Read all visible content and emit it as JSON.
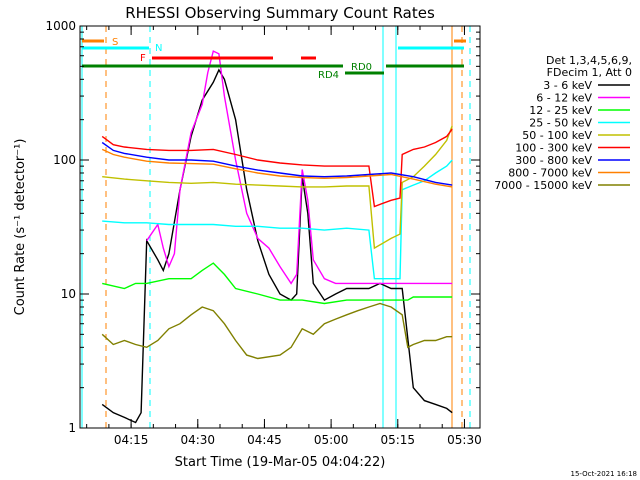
{
  "chart_data": {
    "type": "line",
    "title": "RHESSI Observing Summary Count Rates",
    "xlabel": "Start Time (19-Mar-05 04:04:22)",
    "ylabel": "Count Rate (s⁻¹ detector⁻¹)",
    "y_scale": "log",
    "ylim": [
      1,
      1000
    ],
    "xlim_minutes": [
      0,
      36
    ],
    "x_ticks": [
      {
        "label": "04:15",
        "minute": 4.6
      },
      {
        "label": "04:30",
        "minute": 10.6
      },
      {
        "label": "04:45",
        "minute": 16.6
      },
      {
        "label": "05:00",
        "minute": 22.6
      },
      {
        "label": "05:15",
        "minute": 28.6
      },
      {
        "label": "05:30",
        "minute": 34.6
      }
    ],
    "y_ticks": [
      {
        "label": "1",
        "value": 1
      },
      {
        "label": "10",
        "value": 10
      },
      {
        "label": "100",
        "value": 100
      },
      {
        "label": "1000",
        "value": 1000
      }
    ],
    "legend_header": [
      "Det 1,3,4,5,6,9,",
      "FDecim 1, Att 0"
    ],
    "legend_placement": "right",
    "footer_timestamp": "15-Oct-2021 16:18",
    "flags": {
      "S": {
        "label": "S",
        "color": "#ff8000"
      },
      "N": {
        "label": "N",
        "color": "#00ffff"
      },
      "F": {
        "label": "F",
        "color": "#ff0000"
      },
      "RD0": {
        "label": "RD0",
        "color": "#008000"
      },
      "RD4": {
        "label": "RD4",
        "color": "#008000"
      }
    },
    "series": [
      {
        "name": "3 - 6 keV",
        "color": "#000000",
        "points": [
          [
            2.0,
            1.5
          ],
          [
            3.0,
            1.3
          ],
          [
            4.0,
            1.2
          ],
          [
            5.0,
            1.1
          ],
          [
            5.5,
            1.3
          ],
          [
            6.0,
            25
          ],
          [
            7.0,
            18
          ],
          [
            7.5,
            15
          ],
          [
            8.0,
            20
          ],
          [
            9.0,
            60
          ],
          [
            10.0,
            150
          ],
          [
            11.0,
            280
          ],
          [
            12.0,
            380
          ],
          [
            12.5,
            470
          ],
          [
            13.0,
            400
          ],
          [
            14.0,
            200
          ],
          [
            15.0,
            60
          ],
          [
            16.0,
            25
          ],
          [
            17.0,
            14
          ],
          [
            18.0,
            10
          ],
          [
            19.0,
            9
          ],
          [
            19.5,
            10
          ],
          [
            20.0,
            75
          ],
          [
            20.5,
            40
          ],
          [
            21.0,
            12
          ],
          [
            22.0,
            9
          ],
          [
            23.0,
            10
          ],
          [
            24.0,
            11
          ],
          [
            25.0,
            11
          ],
          [
            26.0,
            11
          ],
          [
            27.0,
            12
          ],
          [
            28.0,
            11
          ],
          [
            29.0,
            11
          ],
          [
            30.0,
            2.0
          ],
          [
            31.0,
            1.6
          ],
          [
            32.0,
            1.5
          ],
          [
            33.0,
            1.4
          ],
          [
            33.5,
            1.3
          ]
        ]
      },
      {
        "name": "6 - 12 keV",
        "color": "#ff00ff",
        "points": [
          [
            6.0,
            25
          ],
          [
            7.0,
            33
          ],
          [
            7.5,
            22
          ],
          [
            8.0,
            16
          ],
          [
            8.5,
            20
          ],
          [
            9.0,
            60
          ],
          [
            10.0,
            160
          ],
          [
            11.0,
            260
          ],
          [
            11.5,
            450
          ],
          [
            12.0,
            650
          ],
          [
            12.5,
            620
          ],
          [
            13.0,
            300
          ],
          [
            14.0,
            100
          ],
          [
            15.0,
            40
          ],
          [
            16.0,
            26
          ],
          [
            17.0,
            22
          ],
          [
            18.0,
            16
          ],
          [
            19.0,
            12
          ],
          [
            19.5,
            14
          ],
          [
            20.0,
            85
          ],
          [
            20.5,
            50
          ],
          [
            21.0,
            18
          ],
          [
            22.0,
            13
          ],
          [
            23.0,
            12
          ],
          [
            24.0,
            12
          ],
          [
            25.0,
            12
          ],
          [
            26.0,
            12
          ],
          [
            27.0,
            12
          ],
          [
            28.0,
            12
          ],
          [
            29.0,
            12
          ],
          [
            30.0,
            12
          ],
          [
            31.0,
            12
          ],
          [
            32.0,
            12
          ],
          [
            33.0,
            12
          ],
          [
            33.5,
            12
          ]
        ]
      },
      {
        "name": "12 - 25 keV",
        "color": "#00ff00",
        "points": [
          [
            2.0,
            12
          ],
          [
            4.0,
            11
          ],
          [
            5.0,
            12
          ],
          [
            6.0,
            12
          ],
          [
            8.0,
            13
          ],
          [
            10.0,
            13
          ],
          [
            11.0,
            15
          ],
          [
            12.0,
            17
          ],
          [
            13.0,
            14
          ],
          [
            14.0,
            11
          ],
          [
            16.0,
            10
          ],
          [
            18.0,
            9
          ],
          [
            20.0,
            9
          ],
          [
            22.0,
            8.5
          ],
          [
            24.0,
            9
          ],
          [
            26.0,
            9
          ],
          [
            28.0,
            9
          ],
          [
            29.5,
            9
          ],
          [
            30.0,
            9.5
          ],
          [
            32.0,
            9.5
          ],
          [
            33.5,
            9.5
          ]
        ]
      },
      {
        "name": "25 - 50 keV",
        "color": "#00ffff",
        "points": [
          [
            2.0,
            35
          ],
          [
            4.0,
            34
          ],
          [
            6.0,
            34
          ],
          [
            8.0,
            33
          ],
          [
            10.0,
            33
          ],
          [
            12.0,
            33
          ],
          [
            14.0,
            32
          ],
          [
            16.0,
            32
          ],
          [
            18.0,
            31
          ],
          [
            20.0,
            31
          ],
          [
            22.0,
            30
          ],
          [
            24.0,
            31
          ],
          [
            26.0,
            30
          ],
          [
            26.5,
            13
          ],
          [
            28.0,
            13
          ],
          [
            28.8,
            13
          ],
          [
            29.0,
            60
          ],
          [
            30.0,
            65
          ],
          [
            31.0,
            70
          ],
          [
            32.0,
            80
          ],
          [
            33.0,
            90
          ],
          [
            33.5,
            100
          ]
        ]
      },
      {
        "name": "50 - 100 keV",
        "color": "#c0c000",
        "points": [
          [
            2.0,
            75
          ],
          [
            4.0,
            72
          ],
          [
            6.0,
            70
          ],
          [
            8.0,
            68
          ],
          [
            10.0,
            67
          ],
          [
            12.0,
            68
          ],
          [
            14.0,
            66
          ],
          [
            16.0,
            65
          ],
          [
            18.0,
            64
          ],
          [
            20.0,
            63
          ],
          [
            22.0,
            63
          ],
          [
            24.0,
            64
          ],
          [
            26.0,
            64
          ],
          [
            26.5,
            22
          ],
          [
            28.0,
            26
          ],
          [
            28.8,
            28
          ],
          [
            29.0,
            68
          ],
          [
            30.0,
            75
          ],
          [
            31.0,
            90
          ],
          [
            32.0,
            110
          ],
          [
            33.0,
            140
          ],
          [
            33.5,
            180
          ]
        ]
      },
      {
        "name": "100 - 300 keV",
        "color": "#ff0000",
        "points": [
          [
            2.0,
            150
          ],
          [
            3.0,
            130
          ],
          [
            4.0,
            125
          ],
          [
            6.0,
            120
          ],
          [
            8.0,
            118
          ],
          [
            10.0,
            118
          ],
          [
            12.0,
            120
          ],
          [
            14.0,
            110
          ],
          [
            16.0,
            100
          ],
          [
            18.0,
            95
          ],
          [
            20.0,
            92
          ],
          [
            22.0,
            90
          ],
          [
            24.0,
            90
          ],
          [
            26.0,
            90
          ],
          [
            26.5,
            45
          ],
          [
            28.0,
            50
          ],
          [
            28.8,
            52
          ],
          [
            29.0,
            110
          ],
          [
            30.0,
            120
          ],
          [
            31.0,
            125
          ],
          [
            32.0,
            135
          ],
          [
            33.0,
            150
          ],
          [
            33.5,
            170
          ]
        ]
      },
      {
        "name": "300 - 800 keV",
        "color": "#0000ff",
        "points": [
          [
            2.0,
            135
          ],
          [
            3.0,
            118
          ],
          [
            4.0,
            112
          ],
          [
            6.0,
            105
          ],
          [
            8.0,
            100
          ],
          [
            10.0,
            100
          ],
          [
            12.0,
            98
          ],
          [
            14.0,
            90
          ],
          [
            16.0,
            84
          ],
          [
            18.0,
            80
          ],
          [
            20.0,
            76
          ],
          [
            22.0,
            75
          ],
          [
            24.0,
            76
          ],
          [
            26.0,
            78
          ],
          [
            28.0,
            80
          ],
          [
            30.0,
            75
          ],
          [
            32.0,
            68
          ],
          [
            33.5,
            65
          ]
        ]
      },
      {
        "name": "800 - 7000 keV",
        "color": "#ff8000",
        "points": [
          [
            2.0,
            120
          ],
          [
            3.0,
            110
          ],
          [
            4.0,
            105
          ],
          [
            6.0,
            98
          ],
          [
            8.0,
            95
          ],
          [
            10.0,
            94
          ],
          [
            12.0,
            93
          ],
          [
            14.0,
            86
          ],
          [
            16.0,
            80
          ],
          [
            18.0,
            76
          ],
          [
            20.0,
            74
          ],
          [
            22.0,
            73
          ],
          [
            24.0,
            74
          ],
          [
            26.0,
            76
          ],
          [
            28.0,
            78
          ],
          [
            30.0,
            72
          ],
          [
            32.0,
            66
          ],
          [
            33.5,
            63
          ]
        ]
      },
      {
        "name": "7000 - 15000 keV",
        "color": "#808000",
        "points": [
          [
            2.0,
            5.0
          ],
          [
            3.0,
            4.2
          ],
          [
            4.0,
            4.5
          ],
          [
            5.0,
            4.2
          ],
          [
            6.0,
            4.0
          ],
          [
            7.0,
            4.5
          ],
          [
            8.0,
            5.5
          ],
          [
            9.0,
            6.0
          ],
          [
            10.0,
            7.0
          ],
          [
            11.0,
            8.0
          ],
          [
            12.0,
            7.5
          ],
          [
            13.0,
            6.0
          ],
          [
            14.0,
            4.5
          ],
          [
            15.0,
            3.5
          ],
          [
            16.0,
            3.3
          ],
          [
            18.0,
            3.5
          ],
          [
            19.0,
            4.0
          ],
          [
            20.0,
            5.5
          ],
          [
            21.0,
            5.0
          ],
          [
            22.0,
            6.0
          ],
          [
            23.0,
            6.5
          ],
          [
            24.0,
            7.0
          ],
          [
            25.0,
            7.5
          ],
          [
            26.0,
            8.0
          ],
          [
            27.0,
            8.5
          ],
          [
            28.0,
            8.0
          ],
          [
            29.0,
            7.0
          ],
          [
            29.5,
            4.0
          ],
          [
            30.0,
            4.2
          ],
          [
            31.0,
            4.5
          ],
          [
            32.0,
            4.5
          ],
          [
            33.0,
            4.8
          ],
          [
            33.5,
            4.8
          ]
        ]
      }
    ]
  }
}
